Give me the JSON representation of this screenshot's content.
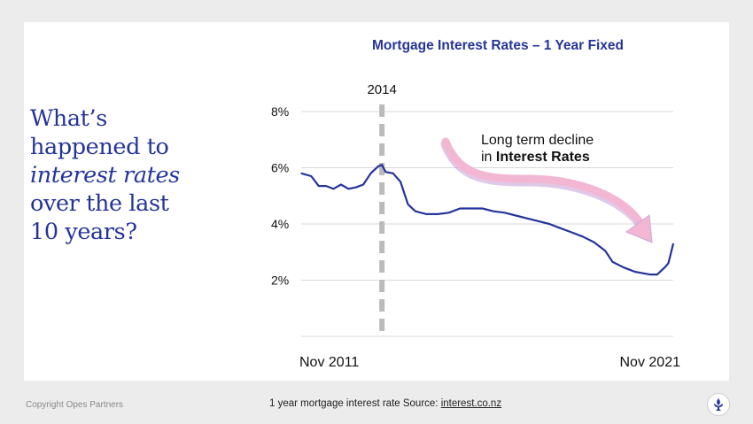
{
  "headline": {
    "line1": "What’s",
    "line2": "happened to",
    "line3": "interest rates",
    "line4": "over the last",
    "line5": "10 years?"
  },
  "footer": {
    "copyright": "Copyright Opes Partners",
    "source_prefix": "1 year mortgage interest rate Source: ",
    "source_link": "interest.co.nz"
  },
  "colors": {
    "navy": "#24349a",
    "arrow_pink": "#f4b7d3",
    "marker_gray": "#bbbbbb",
    "grid": "#d9d9d9"
  },
  "chart_data": {
    "type": "line",
    "title": "Mortgage Interest Rates – 1 Year Fixed",
    "xlabel": "",
    "ylabel": "",
    "x_labels": [
      "Nov 2011",
      "Nov 2021"
    ],
    "y_ticks": [
      2,
      4,
      6,
      8
    ],
    "y_tick_labels": [
      "2%",
      "4%",
      "6%",
      "8%"
    ],
    "ylim": [
      0,
      8
    ],
    "xlim": [
      2011.83,
      2021.83
    ],
    "marker": {
      "x": 2014.0,
      "label": "2014"
    },
    "annotation": {
      "line1": "Long term decline",
      "line2_prefix": "in ",
      "line2_bold": "Interest Rates"
    },
    "series": [
      {
        "name": "1 year fixed mortgage rate",
        "x": [
          2011.83,
          2012.1,
          2012.3,
          2012.5,
          2012.7,
          2012.9,
          2013.1,
          2013.3,
          2013.5,
          2013.7,
          2013.9,
          2014.0,
          2014.1,
          2014.3,
          2014.5,
          2014.7,
          2014.9,
          2015.2,
          2015.5,
          2015.8,
          2016.1,
          2016.4,
          2016.7,
          2017.0,
          2017.3,
          2017.6,
          2017.9,
          2018.2,
          2018.5,
          2018.8,
          2019.1,
          2019.4,
          2019.7,
          2020.0,
          2020.2,
          2020.5,
          2020.8,
          2021.0,
          2021.2,
          2021.4,
          2021.6,
          2021.7,
          2021.83
        ],
        "values": [
          5.8,
          5.7,
          5.35,
          5.35,
          5.25,
          5.4,
          5.25,
          5.3,
          5.4,
          5.8,
          6.05,
          6.1,
          5.85,
          5.8,
          5.5,
          4.7,
          4.45,
          4.35,
          4.35,
          4.4,
          4.55,
          4.55,
          4.55,
          4.45,
          4.4,
          4.3,
          4.2,
          4.1,
          4.0,
          3.85,
          3.7,
          3.55,
          3.35,
          3.05,
          2.65,
          2.45,
          2.3,
          2.25,
          2.2,
          2.2,
          2.45,
          2.6,
          3.3
        ]
      }
    ]
  }
}
